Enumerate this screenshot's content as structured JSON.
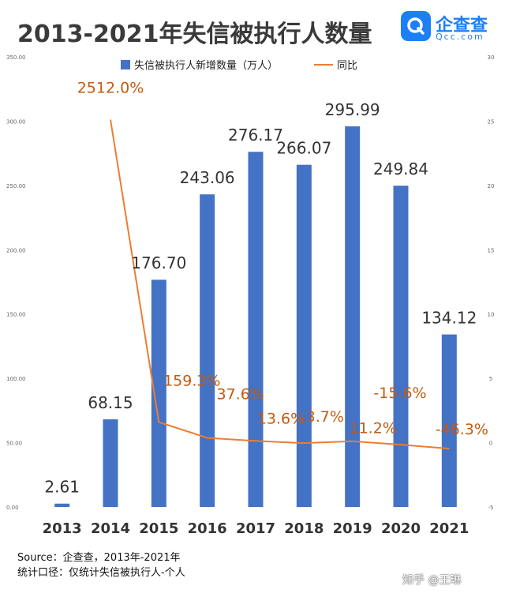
{
  "header": {
    "title": "2013-2021年失信被执行人数量",
    "logo_name": "企查查",
    "logo_sub": "Qcc.com"
  },
  "footer": {
    "source": "Source：企查查，2013年-2021年",
    "note": "统计口径：仅统计失信被执行人-个人"
  },
  "credit": "知乎 @王琳",
  "colors": {
    "bar": "#4472c4",
    "line": "#ed7d31",
    "label_orange": "#c55a11",
    "title": "#3a3a3a"
  },
  "chart_data": {
    "type": "bar",
    "categories": [
      "2013",
      "2014",
      "2015",
      "2016",
      "2017",
      "2018",
      "2019",
      "2020",
      "2021"
    ],
    "series": [
      {
        "name": "失信被执行人新增数量（万人）",
        "type": "bar",
        "axis": "left",
        "values": [
          2.61,
          68.15,
          176.7,
          243.06,
          276.17,
          266.07,
          295.99,
          249.84,
          134.12
        ],
        "labels": [
          "2.61",
          "68.15",
          "176.70",
          "243.06",
          "276.17",
          "266.07",
          "295.99",
          "249.84",
          "134.12"
        ]
      },
      {
        "name": "同比",
        "type": "line",
        "axis": "right",
        "values": [
          null,
          25.12,
          1.593,
          0.376,
          0.136,
          -0.037,
          0.112,
          -0.156,
          -0.463
        ],
        "labels": [
          "",
          "2512.0%",
          "159.3%",
          "37.6%",
          "13.6%",
          "-3.7%",
          "11.2%",
          "-15.6%",
          "-46.3%"
        ]
      }
    ],
    "left_axis": {
      "ylim": [
        0,
        350
      ],
      "ticks": [
        "0.00",
        "50.00",
        "100.00",
        "150.00",
        "200.00",
        "250.00",
        "300.00",
        "350.00"
      ]
    },
    "right_axis": {
      "ylim": [
        -5,
        30
      ],
      "ticks": [
        "-5",
        "0",
        "5",
        "10",
        "15",
        "20",
        "25",
        "30"
      ]
    },
    "legend": "top"
  }
}
